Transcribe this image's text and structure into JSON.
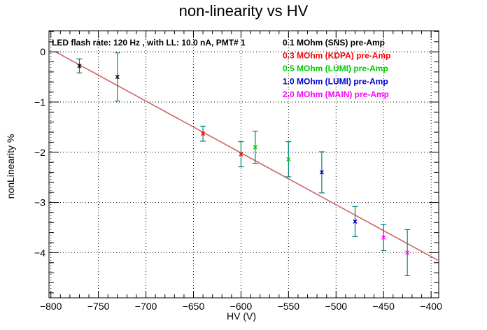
{
  "chart_data": {
    "type": "scatter",
    "title": "non-linearity vs HV",
    "xlabel": "HV (V)",
    "ylabel": "nonLinearity %",
    "xlim": [
      -802,
      -392
    ],
    "ylim": [
      -4.9,
      0.42
    ],
    "x_ticks": [
      -800,
      -750,
      -700,
      -650,
      -600,
      -550,
      -500,
      -450,
      -400
    ],
    "x_tick_labels": [
      "−800",
      "−750",
      "−700",
      "−650",
      "−600",
      "−550",
      "−500",
      "−450",
      "−400"
    ],
    "y_ticks": [
      0,
      -1,
      -2,
      -3,
      -4
    ],
    "y_tick_labels": [
      "0",
      "−1",
      "−2",
      "−3",
      "−4"
    ],
    "grid": true,
    "annotation": "LED flash rate: 120 Hz , with LL: 10.0 nA, PMT# 1",
    "fit_line": {
      "x": [
        -795,
        -393
      ],
      "y": [
        0.0,
        -4.15
      ],
      "color": "#cc6666"
    },
    "error_bar_color": "#008080",
    "series": [
      {
        "name": "0.1 MOhm (SNS) pre-Amp",
        "color": "#000000",
        "points": [
          {
            "x": -770,
            "y": -0.28,
            "err": 0.14
          },
          {
            "x": -730,
            "y": -0.5,
            "err": 0.48
          }
        ]
      },
      {
        "name": "0.3 MOhm (KDPA) pre-Amp",
        "color": "#ff0000",
        "points": [
          {
            "x": -640,
            "y": -1.63,
            "err": 0.15
          },
          {
            "x": -600,
            "y": -2.04,
            "err": 0.25
          }
        ]
      },
      {
        "name": "0.5 MOhm (LUMI) pre-Amp",
        "color": "#00cc00",
        "points": [
          {
            "x": -585,
            "y": -1.9,
            "err": 0.32
          },
          {
            "x": -550,
            "y": -2.14,
            "err": 0.35
          }
        ]
      },
      {
        "name": "1.0 MOhm (LUMI) pre-Amp",
        "color": "#0000cc",
        "points": [
          {
            "x": -515,
            "y": -2.4,
            "err": 0.41
          },
          {
            "x": -480,
            "y": -3.38,
            "err": 0.3
          }
        ]
      },
      {
        "name": "2.0 MOhm (MAIN) pre-Amp",
        "color": "#ff00ff",
        "points": [
          {
            "x": -450,
            "y": -3.7,
            "err": 0.26
          },
          {
            "x": -425,
            "y": -4.0,
            "err": 0.46
          }
        ]
      }
    ]
  }
}
